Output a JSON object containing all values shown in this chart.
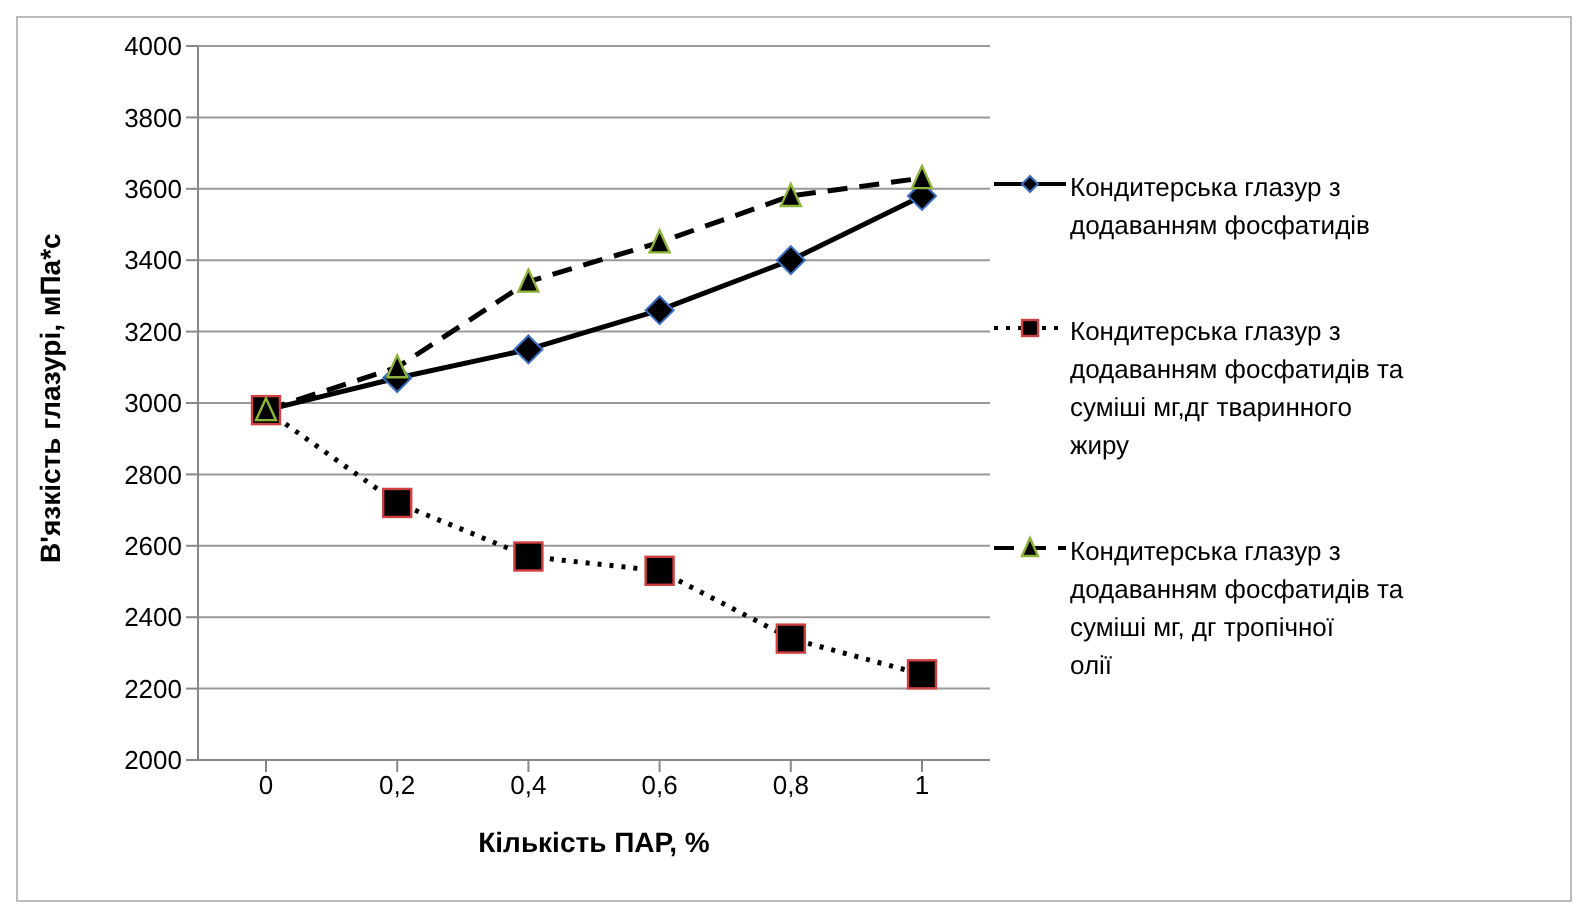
{
  "chart_data": {
    "type": "line",
    "xlabel": "Кількість ПАР, %",
    "ylabel": "В'язкість глазурі, мПа*с",
    "categories": [
      "0",
      "0,2",
      "0,4",
      "0,6",
      "0,8",
      "1"
    ],
    "series": [
      {
        "name": "Кондитерська глазур з додаванням фосфатидів",
        "color": "#000000",
        "marker": "diamond",
        "line_style": "solid",
        "values": [
          2980,
          3070,
          3150,
          3260,
          3400,
          3580
        ]
      },
      {
        "name": "Кондитерська глазур з додаванням фосфатидів та суміші мг,дг тваринного жиру",
        "color": "#000000",
        "marker": "square",
        "line_style": "dotted",
        "values": [
          2980,
          2720,
          2570,
          2530,
          2340,
          2240
        ]
      },
      {
        "name": "Кондитерська глазур з додаванням фосфатидів та суміші мг, дг тропічної олії",
        "color": "#000000",
        "marker": "triangle",
        "line_style": "dashed",
        "values": [
          2980,
          3100,
          3340,
          3450,
          3580,
          3630
        ]
      }
    ],
    "ylim": [
      2000,
      4000
    ],
    "yticks": [
      2000,
      2200,
      2400,
      2600,
      2800,
      3000,
      3200,
      3400,
      3600,
      3800,
      4000
    ],
    "grid": "y",
    "legend": "right"
  }
}
